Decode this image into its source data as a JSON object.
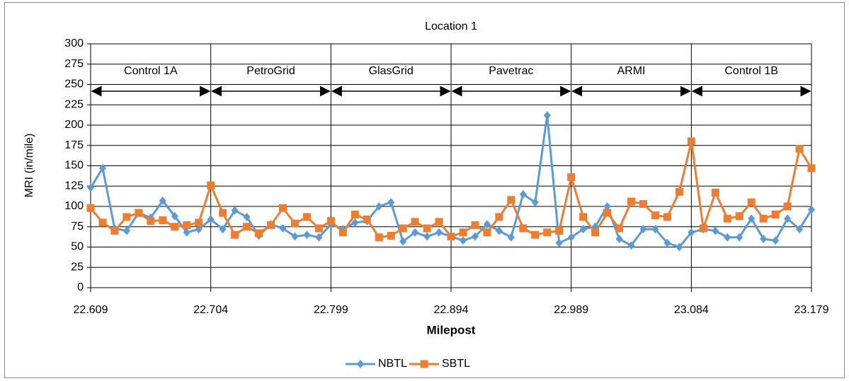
{
  "chart_data": {
    "type": "line",
    "title": "Location 1",
    "x_label": "Milepost",
    "y_label": "MRI (in/mile)",
    "x": [
      22.609,
      22.6185,
      22.628,
      22.6375,
      22.647,
      22.6565,
      22.666,
      22.6755,
      22.685,
      22.6945,
      22.704,
      22.7135,
      22.723,
      22.7325,
      22.742,
      22.7515,
      22.761,
      22.7705,
      22.78,
      22.7895,
      22.799,
      22.8085,
      22.818,
      22.8275,
      22.837,
      22.8465,
      22.856,
      22.8655,
      22.875,
      22.8845,
      22.894,
      22.9035,
      22.913,
      22.9225,
      22.932,
      22.9415,
      22.951,
      22.9605,
      22.97,
      22.9795,
      22.989,
      22.9985,
      23.008,
      23.0175,
      23.027,
      23.0365,
      23.046,
      23.0555,
      23.065,
      23.0745,
      23.084,
      23.0935,
      23.103,
      23.1125,
      23.122,
      23.1315,
      23.141,
      23.1505,
      23.16,
      23.1695,
      23.179
    ],
    "series": [
      {
        "name": "NBTL",
        "color": "#5b9bd5",
        "marker": "diamond",
        "values": [
          123,
          147,
          73,
          70,
          92,
          86,
          107,
          88,
          68,
          72,
          84,
          72,
          95,
          87,
          64,
          78,
          73,
          63,
          65,
          62,
          78,
          72,
          80,
          82,
          100,
          105,
          57,
          68,
          63,
          68,
          63,
          58,
          63,
          78,
          70,
          62,
          115,
          105,
          212,
          55,
          62,
          72,
          75,
          100,
          60,
          52,
          72,
          72,
          55,
          50,
          68,
          72,
          70,
          62,
          62,
          85,
          60,
          58,
          85,
          72,
          96
        ]
      },
      {
        "name": "SBTL",
        "color": "#ed7d31",
        "marker": "square",
        "values": [
          98,
          80,
          70,
          87,
          92,
          82,
          83,
          75,
          77,
          80,
          126,
          92,
          65,
          75,
          67,
          77,
          98,
          79,
          87,
          73,
          82,
          68,
          90,
          84,
          62,
          64,
          73,
          81,
          73,
          81,
          63,
          68,
          77,
          68,
          87,
          108,
          73,
          65,
          68,
          70,
          136,
          87,
          68,
          92,
          73,
          106,
          103,
          89,
          87,
          118,
          180,
          73,
          117,
          85,
          88,
          105,
          85,
          90,
          100,
          171,
          147
        ]
      }
    ],
    "sections": [
      "Control  1A",
      "PetroGrid",
      "GlasGrid",
      "Pavetrac",
      "ARMI",
      "Control 1B"
    ],
    "xlim": [
      22.609,
      23.179
    ],
    "xticks": [
      22.609,
      22.704,
      22.799,
      22.894,
      22.989,
      23.084,
      23.179
    ],
    "ylim": [
      0,
      300
    ],
    "yticks": [
      0,
      25,
      50,
      75,
      100,
      125,
      150,
      175,
      200,
      225,
      250,
      275,
      300
    ],
    "grid": true,
    "legend": "bottom"
  }
}
